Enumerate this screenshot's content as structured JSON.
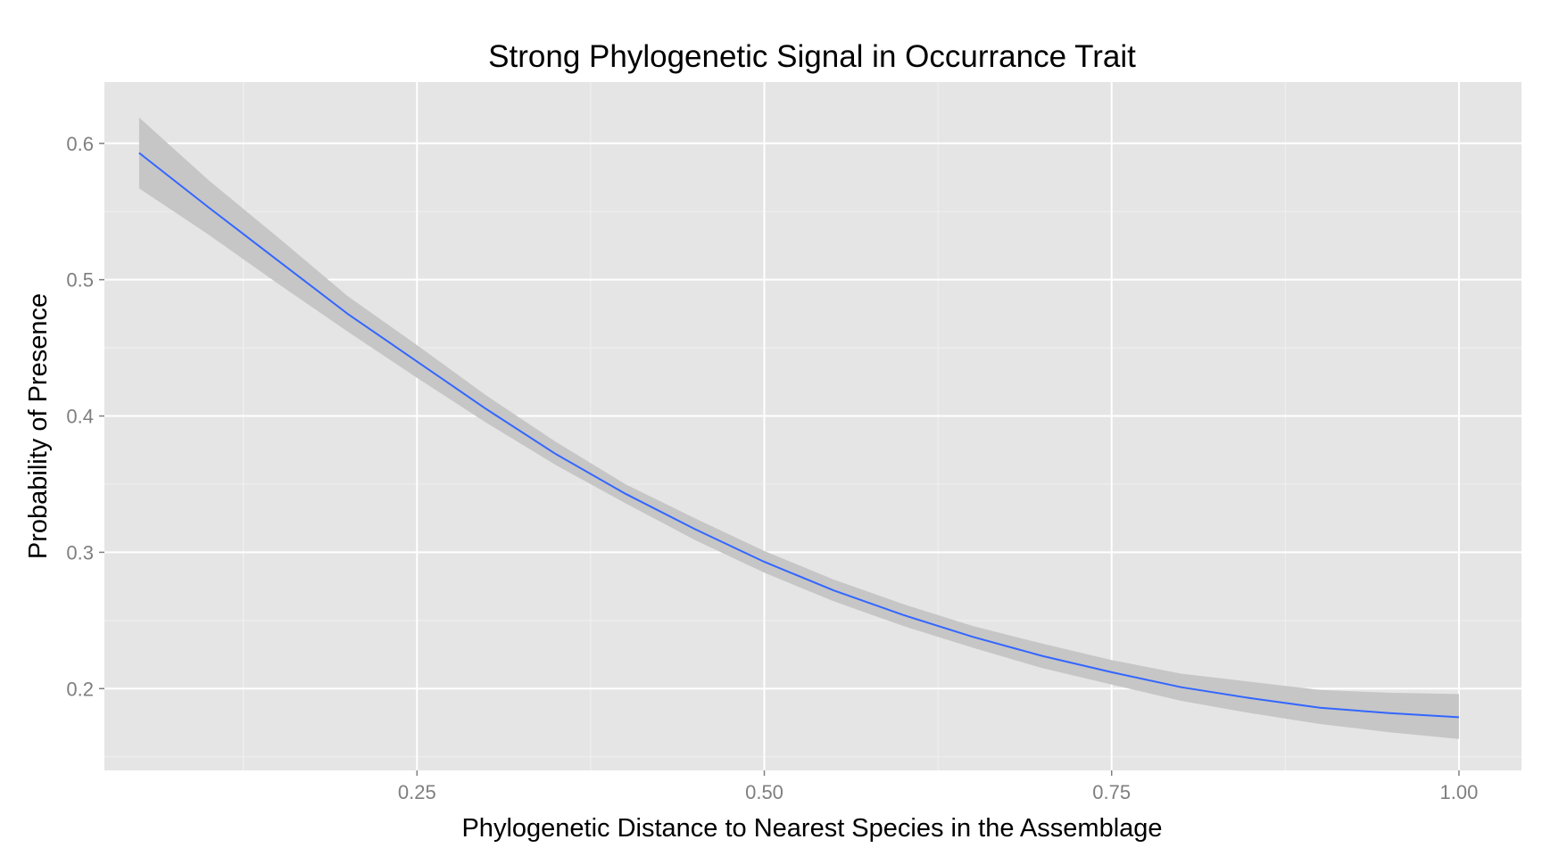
{
  "chart_data": {
    "type": "line",
    "title": "Strong Phylogenetic Signal in Occurrance Trait",
    "xlabel": "Phylogenetic Distance to Nearest Species in the Assemblage",
    "ylabel": "Probability of Presence",
    "xlim": [
      0.025,
      1.045
    ],
    "ylim": [
      0.14,
      0.645
    ],
    "x_ticks": [
      0.25,
      0.5,
      0.75,
      1.0
    ],
    "x_tick_labels": [
      "0.25",
      "0.50",
      "0.75",
      "1.00"
    ],
    "y_ticks": [
      0.2,
      0.3,
      0.4,
      0.5,
      0.6
    ],
    "y_tick_labels": [
      "0.2",
      "0.3",
      "0.4",
      "0.5",
      "0.6"
    ],
    "grid": true,
    "legend": "none",
    "series": [
      {
        "x": [
          0.05,
          0.1,
          0.15,
          0.2,
          0.25,
          0.3,
          0.35,
          0.4,
          0.45,
          0.5,
          0.55,
          0.6,
          0.65,
          0.7,
          0.75,
          0.8,
          0.85,
          0.9,
          0.95,
          1.0
        ],
        "y": [
          0.593,
          0.553,
          0.514,
          0.475,
          0.44,
          0.405,
          0.372,
          0.343,
          0.317,
          0.293,
          0.272,
          0.254,
          0.238,
          0.224,
          0.212,
          0.201,
          0.193,
          0.186,
          0.182,
          0.179
        ],
        "lower": [
          0.567,
          0.533,
          0.497,
          0.462,
          0.428,
          0.395,
          0.364,
          0.336,
          0.309,
          0.285,
          0.264,
          0.246,
          0.23,
          0.215,
          0.203,
          0.191,
          0.182,
          0.174,
          0.168,
          0.163
        ],
        "upper": [
          0.619,
          0.573,
          0.531,
          0.488,
          0.452,
          0.415,
          0.381,
          0.35,
          0.325,
          0.301,
          0.28,
          0.262,
          0.246,
          0.233,
          0.221,
          0.211,
          0.205,
          0.199,
          0.197,
          0.196
        ]
      }
    ],
    "colors": {
      "line": "#3366ff",
      "ribbon": "#c6c6c6",
      "panel": "#e5e5e5",
      "grid_major": "#ffffff",
      "grid_minor": "#f0f0f0",
      "tick_text": "#7f7f7f"
    }
  }
}
